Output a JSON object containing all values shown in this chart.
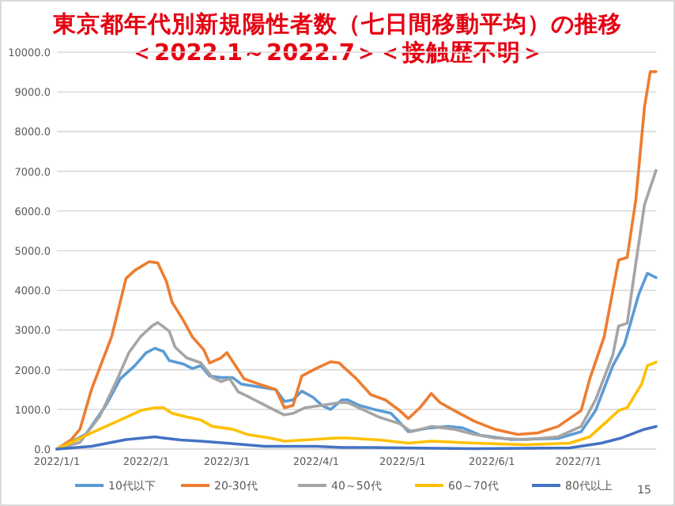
{
  "chart_data": {
    "type": "line",
    "title": "東京都年代別新規陽性者数（七日間移動平均）の推移",
    "subtitle": "＜2022.1～2022.7＞＜接触歴不明＞",
    "xlim": [
      "2022-01-01",
      "2022-07-28"
    ],
    "xticks": [
      {
        "value": "2022-01-01",
        "label": "2022/1/1"
      },
      {
        "value": "2022-02-01",
        "label": "2022/2/1"
      },
      {
        "value": "2022-03-01",
        "label": "2022/3/1"
      },
      {
        "value": "2022-04-01",
        "label": "2022/4/1"
      },
      {
        "value": "2022-05-01",
        "label": "2022/5/1"
      },
      {
        "value": "2022-06-01",
        "label": "2022/6/1"
      },
      {
        "value": "2022-07-01",
        "label": "2022/7/1"
      }
    ],
    "ylim": [
      0,
      10000
    ],
    "yticks": [
      {
        "value": 0,
        "label": "0.0"
      },
      {
        "value": 1000,
        "label": "1000.0"
      },
      {
        "value": 2000,
        "label": "2000.0"
      },
      {
        "value": 3000,
        "label": "3000.0"
      },
      {
        "value": 4000,
        "label": "4000.0"
      },
      {
        "value": 5000,
        "label": "5000.0"
      },
      {
        "value": 6000,
        "label": "6000.0"
      },
      {
        "value": 7000,
        "label": "7000.0"
      },
      {
        "value": 8000,
        "label": "8000.0"
      },
      {
        "value": 9000,
        "label": "9000.0"
      },
      {
        "value": 10000,
        "label": "10000.0"
      }
    ],
    "grid": "y",
    "legend": "bottom",
    "annotations": [
      "15"
    ],
    "series": [
      {
        "name": "10代以下",
        "color": "#5b9bd5",
        "x": [
          "2022-01-01",
          "2022-01-11",
          "2022-01-18",
          "2022-01-23",
          "2022-01-28",
          "2022-02-01",
          "2022-02-04",
          "2022-02-07",
          "2022-02-09",
          "2022-02-14",
          "2022-02-17",
          "2022-02-20",
          "2022-02-23",
          "2022-02-27",
          "2022-03-03",
          "2022-03-06",
          "2022-03-12",
          "2022-03-18",
          "2022-03-21",
          "2022-03-24",
          "2022-03-27",
          "2022-03-31",
          "2022-04-03",
          "2022-04-06",
          "2022-04-10",
          "2022-04-12",
          "2022-04-16",
          "2022-04-21",
          "2022-04-27",
          "2022-05-03",
          "2022-05-10",
          "2022-05-17",
          "2022-05-22",
          "2022-05-28",
          "2022-06-08",
          "2022-06-24",
          "2022-07-02",
          "2022-07-07",
          "2022-07-13",
          "2022-07-17",
          "2022-07-22",
          "2022-07-25",
          "2022-07-28"
        ],
        "values": [
          0,
          370,
          1100,
          1770,
          2100,
          2430,
          2540,
          2460,
          2230,
          2140,
          2030,
          2100,
          1840,
          1800,
          1800,
          1640,
          1570,
          1500,
          1200,
          1240,
          1460,
          1300,
          1100,
          1000,
          1240,
          1240,
          1100,
          1000,
          900,
          440,
          530,
          570,
          530,
          350,
          240,
          270,
          440,
          970,
          2100,
          2630,
          3900,
          4430,
          4320
        ]
      },
      {
        "name": "20-30代",
        "color": "#ed7d31",
        "x": [
          "2022-01-01",
          "2022-01-06",
          "2022-01-09",
          "2022-01-13",
          "2022-01-20",
          "2022-01-25",
          "2022-01-28",
          "2022-02-02",
          "2022-02-05",
          "2022-02-08",
          "2022-02-10",
          "2022-02-14",
          "2022-02-17",
          "2022-02-21",
          "2022-02-23",
          "2022-02-27",
          "2022-03-01",
          "2022-03-04",
          "2022-03-07",
          "2022-03-12",
          "2022-03-18",
          "2022-03-21",
          "2022-03-24",
          "2022-03-27",
          "2022-04-01",
          "2022-04-06",
          "2022-04-09",
          "2022-04-12",
          "2022-04-15",
          "2022-04-20",
          "2022-04-25",
          "2022-04-30",
          "2022-05-03",
          "2022-05-07",
          "2022-05-11",
          "2022-05-14",
          "2022-05-19",
          "2022-05-26",
          "2022-06-02",
          "2022-06-10",
          "2022-06-17",
          "2022-06-24",
          "2022-07-02",
          "2022-07-05",
          "2022-07-10",
          "2022-07-15",
          "2022-07-18",
          "2022-07-21",
          "2022-07-24",
          "2022-07-26",
          "2022-07-28"
        ],
        "values": [
          0,
          240,
          500,
          1500,
          2830,
          4300,
          4500,
          4720,
          4690,
          4230,
          3700,
          3230,
          2830,
          2500,
          2170,
          2300,
          2430,
          2100,
          1770,
          1640,
          1500,
          1040,
          1100,
          1840,
          2030,
          2200,
          2170,
          1970,
          1770,
          1370,
          1240,
          970,
          770,
          1040,
          1400,
          1170,
          970,
          700,
          500,
          370,
          410,
          570,
          970,
          1770,
          2830,
          4760,
          4830,
          6290,
          8620,
          9510,
          9510
        ]
      },
      {
        "name": "40～50代",
        "color": "#a5a5a5",
        "x": [
          "2022-01-01",
          "2022-01-09",
          "2022-01-16",
          "2022-01-22",
          "2022-01-26",
          "2022-01-30",
          "2022-02-03",
          "2022-02-05",
          "2022-02-09",
          "2022-02-11",
          "2022-02-15",
          "2022-02-20",
          "2022-02-24",
          "2022-02-27",
          "2022-03-02",
          "2022-03-05",
          "2022-03-09",
          "2022-03-16",
          "2022-03-21",
          "2022-03-24",
          "2022-03-28",
          "2022-04-03",
          "2022-04-09",
          "2022-04-12",
          "2022-04-18",
          "2022-04-23",
          "2022-04-30",
          "2022-05-04",
          "2022-05-11",
          "2022-05-19",
          "2022-05-26",
          "2022-06-02",
          "2022-06-13",
          "2022-06-24",
          "2022-07-02",
          "2022-07-07",
          "2022-07-13",
          "2022-07-15",
          "2022-07-18",
          "2022-07-21",
          "2022-07-24",
          "2022-07-28"
        ],
        "values": [
          0,
          170,
          840,
          1770,
          2430,
          2830,
          3100,
          3190,
          2970,
          2570,
          2300,
          2170,
          1800,
          1700,
          1770,
          1440,
          1300,
          1040,
          860,
          900,
          1040,
          1100,
          1170,
          1170,
          970,
          800,
          640,
          440,
          570,
          500,
          370,
          280,
          240,
          310,
          570,
          1240,
          2370,
          3100,
          3170,
          4690,
          6160,
          7020
        ]
      },
      {
        "name": "60～70代",
        "color": "#ffc000",
        "x": [
          "2022-01-01",
          "2022-01-14",
          "2022-01-25",
          "2022-01-30",
          "2022-02-04",
          "2022-02-07",
          "2022-02-10",
          "2022-02-15",
          "2022-02-20",
          "2022-02-24",
          "2022-03-03",
          "2022-03-08",
          "2022-03-16",
          "2022-03-21",
          "2022-03-28",
          "2022-04-08",
          "2022-04-12",
          "2022-04-23",
          "2022-05-03",
          "2022-05-11",
          "2022-05-26",
          "2022-06-13",
          "2022-06-28",
          "2022-07-05",
          "2022-07-11",
          "2022-07-15",
          "2022-07-18",
          "2022-07-23",
          "2022-07-25",
          "2022-07-28"
        ],
        "values": [
          0,
          440,
          800,
          970,
          1040,
          1040,
          900,
          810,
          730,
          570,
          500,
          370,
          280,
          200,
          230,
          280,
          280,
          230,
          150,
          200,
          150,
          110,
          150,
          310,
          700,
          970,
          1040,
          1640,
          2100,
          2190
        ]
      },
      {
        "name": "80代以上",
        "color": "#4472c4",
        "x": [
          "2022-01-01",
          "2022-01-13",
          "2022-01-25",
          "2022-02-04",
          "2022-02-07",
          "2022-02-13",
          "2022-02-20",
          "2022-03-01",
          "2022-03-14",
          "2022-04-01",
          "2022-04-10",
          "2022-04-20",
          "2022-05-26",
          "2022-06-28",
          "2022-07-09",
          "2022-07-16",
          "2022-07-24",
          "2022-07-28"
        ],
        "values": [
          0,
          70,
          240,
          310,
          280,
          230,
          200,
          150,
          70,
          70,
          40,
          40,
          10,
          30,
          150,
          280,
          500,
          570
        ]
      }
    ]
  }
}
